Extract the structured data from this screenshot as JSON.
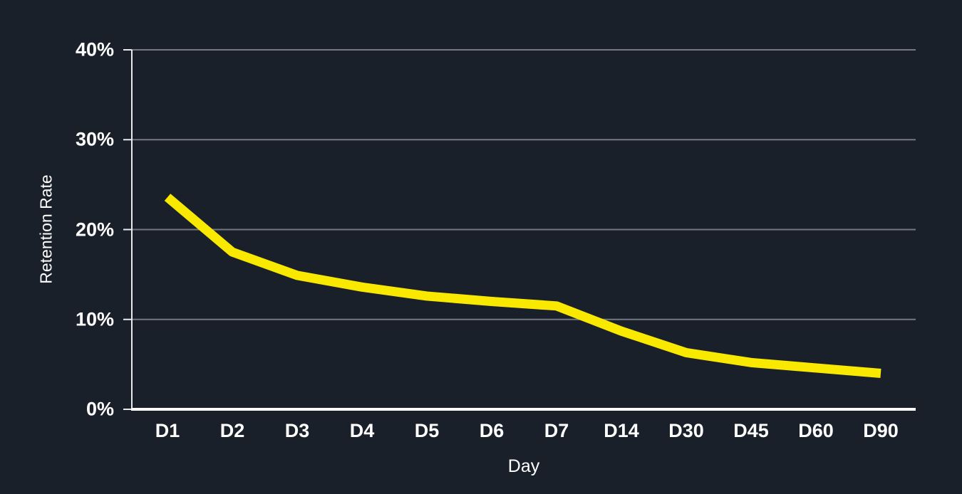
{
  "chart_data": {
    "type": "line",
    "title": "",
    "categories": [
      "D1",
      "D2",
      "D3",
      "D4",
      "D5",
      "D6",
      "D7",
      "D14",
      "D30",
      "D45",
      "D60",
      "D90"
    ],
    "series": [
      {
        "name": "Retention Rate",
        "values": [
          23.6,
          17.5,
          14.9,
          13.6,
          12.6,
          12.0,
          11.5,
          8.7,
          6.3,
          5.2,
          4.6,
          4.0
        ]
      }
    ],
    "xlabel": "Day",
    "ylabel": "Retention Rate",
    "ylim": [
      0,
      40
    ],
    "yticks": [
      0,
      10,
      20,
      30,
      40
    ],
    "ytick_labels": [
      "0%",
      "10%",
      "20%",
      "30%",
      "40%"
    ],
    "grid": "horizontal-only",
    "legend": "none",
    "colors": {
      "background": "#1a202a",
      "line": "#f9e900",
      "gridline": "#74787f",
      "axis_left": "#e8eaed",
      "axis_bottom": "#ffffff",
      "text": "#ffffff"
    }
  }
}
